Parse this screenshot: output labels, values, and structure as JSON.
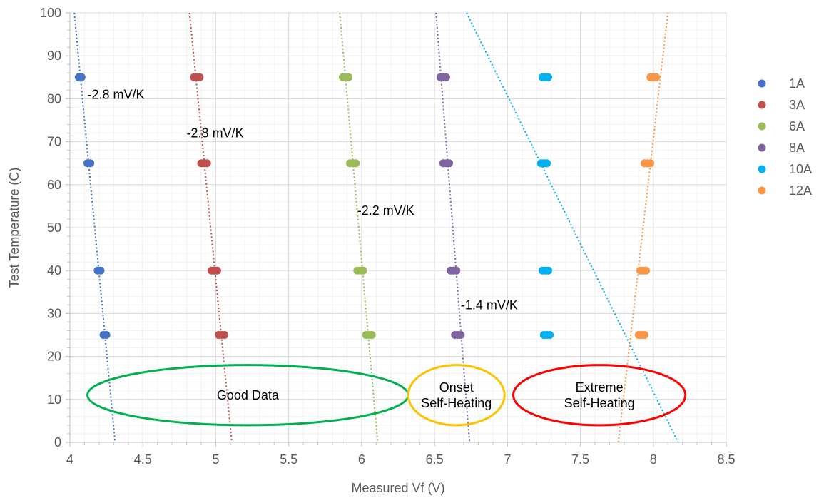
{
  "chart_data": {
    "type": "scatter",
    "xlabel": "Measured Vf (V)",
    "ylabel": "Test Temperature (C)",
    "xlim": [
      4,
      8.5
    ],
    "ylim": [
      0,
      100
    ],
    "x_ticks": [
      "4",
      "4.5",
      "5",
      "5.5",
      "6",
      "6.5",
      "7",
      "7.5",
      "8",
      "8.5"
    ],
    "y_ticks": [
      "0",
      "10",
      "20",
      "30",
      "40",
      "50",
      "60",
      "70",
      "80",
      "90",
      "100"
    ],
    "grid": true,
    "legend_position": "right",
    "series": [
      {
        "name": "1A",
        "color": "#4472C4",
        "points": [
          [
            4.06,
            85
          ],
          [
            4.08,
            85
          ],
          [
            4.12,
            65
          ],
          [
            4.14,
            65
          ],
          [
            4.19,
            40
          ],
          [
            4.21,
            40
          ],
          [
            4.23,
            25
          ],
          [
            4.25,
            25
          ]
        ],
        "trendline": [
          [
            4.03,
            100
          ],
          [
            4.31,
            0
          ]
        ]
      },
      {
        "name": "3A",
        "color": "#C0504D",
        "points": [
          [
            4.85,
            85
          ],
          [
            4.87,
            85
          ],
          [
            4.89,
            85
          ],
          [
            4.9,
            65
          ],
          [
            4.92,
            65
          ],
          [
            4.94,
            65
          ],
          [
            4.97,
            40
          ],
          [
            4.99,
            40
          ],
          [
            5.01,
            40
          ],
          [
            5.02,
            25
          ],
          [
            5.04,
            25
          ],
          [
            5.06,
            25
          ]
        ],
        "trendline": [
          [
            4.82,
            100
          ],
          [
            5.11,
            0
          ]
        ]
      },
      {
        "name": "6A",
        "color": "#9BBB59",
        "points": [
          [
            5.87,
            85
          ],
          [
            5.89,
            85
          ],
          [
            5.91,
            85
          ],
          [
            5.92,
            65
          ],
          [
            5.94,
            65
          ],
          [
            5.96,
            65
          ],
          [
            5.97,
            40
          ],
          [
            5.99,
            40
          ],
          [
            6.01,
            40
          ],
          [
            6.03,
            25
          ],
          [
            6.05,
            25
          ],
          [
            6.07,
            25
          ]
        ],
        "trendline": [
          [
            5.85,
            100
          ],
          [
            6.11,
            0
          ]
        ]
      },
      {
        "name": "8A",
        "color": "#8064A2",
        "points": [
          [
            6.54,
            85
          ],
          [
            6.56,
            85
          ],
          [
            6.58,
            85
          ],
          [
            6.56,
            65
          ],
          [
            6.58,
            65
          ],
          [
            6.6,
            65
          ],
          [
            6.61,
            40
          ],
          [
            6.63,
            40
          ],
          [
            6.65,
            40
          ],
          [
            6.64,
            25
          ],
          [
            6.66,
            25
          ],
          [
            6.68,
            25
          ]
        ],
        "trendline": [
          [
            6.51,
            100
          ],
          [
            6.74,
            0
          ]
        ]
      },
      {
        "name": "10A",
        "color": "#00B0F0",
        "points": [
          [
            7.24,
            85
          ],
          [
            7.26,
            85
          ],
          [
            7.28,
            85
          ],
          [
            7.23,
            65
          ],
          [
            7.25,
            65
          ],
          [
            7.27,
            65
          ],
          [
            7.24,
            40
          ],
          [
            7.26,
            40
          ],
          [
            7.28,
            40
          ],
          [
            7.25,
            25
          ],
          [
            7.27,
            25
          ],
          [
            7.29,
            25
          ]
        ],
        "trendline": [
          [
            6.72,
            100
          ],
          [
            8.17,
            0
          ]
        ]
      },
      {
        "name": "12A",
        "color": "#F79646",
        "points": [
          [
            7.98,
            85
          ],
          [
            8.0,
            85
          ],
          [
            8.02,
            85
          ],
          [
            7.94,
            65
          ],
          [
            7.96,
            65
          ],
          [
            7.98,
            65
          ],
          [
            7.91,
            40
          ],
          [
            7.93,
            40
          ],
          [
            7.95,
            40
          ],
          [
            7.9,
            25
          ],
          [
            7.92,
            25
          ],
          [
            7.94,
            25
          ]
        ],
        "trendline": [
          [
            7.76,
            0
          ],
          [
            8.1,
            100
          ]
        ]
      }
    ],
    "annotations": [
      {
        "text": "-2.8 mV/K",
        "x": 4.12,
        "y": 81
      },
      {
        "text": "-2.8 mV/K",
        "x": 4.8,
        "y": 72
      },
      {
        "text": "-2.2 mV/K",
        "x": 5.97,
        "y": 54
      },
      {
        "text": "-1.4 mV/K",
        "x": 6.68,
        "y": 32
      }
    ],
    "regions": [
      {
        "lines": [
          "Good Data"
        ],
        "color": "#00B050",
        "cx": 5.22,
        "cy": 11,
        "rx": 1.1,
        "ry": 7
      },
      {
        "lines": [
          "Onset",
          "Self-Heating"
        ],
        "color": "#FFC000",
        "cx": 6.65,
        "cy": 11,
        "rx": 0.33,
        "ry": 7
      },
      {
        "lines": [
          "Extreme",
          "Self-Heating"
        ],
        "color": "#FF0000",
        "cx": 7.63,
        "cy": 11,
        "rx": 0.59,
        "ry": 7
      }
    ]
  }
}
